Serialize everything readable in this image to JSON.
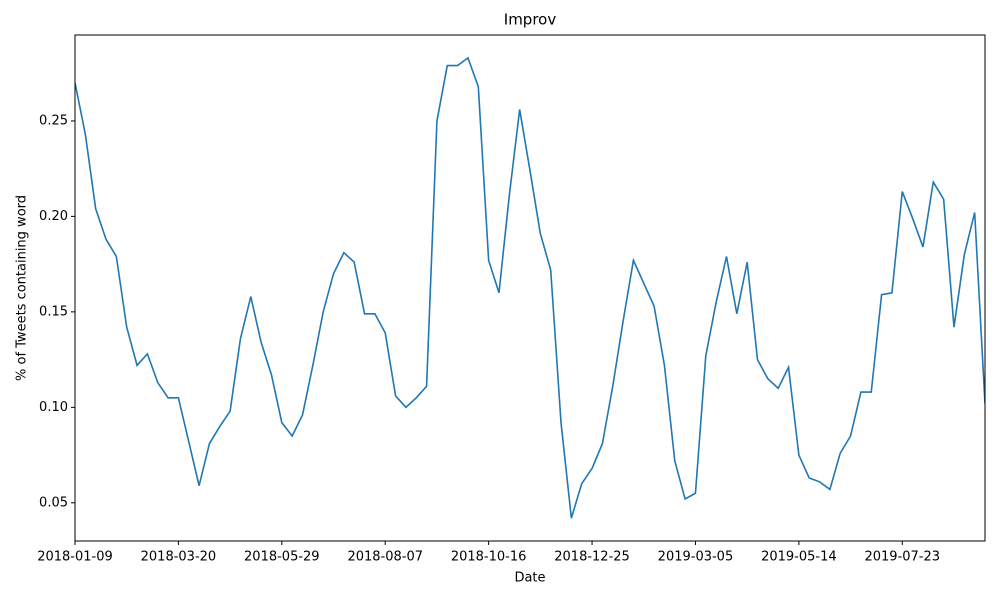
{
  "chart_data": {
    "type": "line",
    "title": "Improv",
    "x_label": "Date",
    "y_label": "% of Tweets containing word",
    "x": [
      "2018-01-09",
      "2018-01-16",
      "2018-01-23",
      "2018-01-30",
      "2018-02-06",
      "2018-02-13",
      "2018-02-20",
      "2018-02-27",
      "2018-03-06",
      "2018-03-13",
      "2018-03-20",
      "2018-03-27",
      "2018-04-03",
      "2018-04-10",
      "2018-04-17",
      "2018-04-24",
      "2018-05-01",
      "2018-05-08",
      "2018-05-15",
      "2018-05-22",
      "2018-05-29",
      "2018-06-05",
      "2018-06-12",
      "2018-06-19",
      "2018-06-26",
      "2018-07-03",
      "2018-07-10",
      "2018-07-17",
      "2018-07-24",
      "2018-07-31",
      "2018-08-07",
      "2018-08-14",
      "2018-08-21",
      "2018-08-28",
      "2018-09-04",
      "2018-09-11",
      "2018-09-18",
      "2018-09-25",
      "2018-10-02",
      "2018-10-09",
      "2018-10-16",
      "2018-10-23",
      "2018-10-30",
      "2018-11-06",
      "2018-11-13",
      "2018-11-20",
      "2018-11-27",
      "2018-12-04",
      "2018-12-11",
      "2018-12-18",
      "2018-12-25",
      "2019-01-01",
      "2019-01-08",
      "2019-01-15",
      "2019-01-22",
      "2019-01-29",
      "2019-02-05",
      "2019-02-12",
      "2019-02-19",
      "2019-02-26",
      "2019-03-05",
      "2019-03-12",
      "2019-03-19",
      "2019-03-26",
      "2019-04-02",
      "2019-04-09",
      "2019-04-16",
      "2019-04-23",
      "2019-04-30",
      "2019-05-07",
      "2019-05-14",
      "2019-05-21",
      "2019-05-28",
      "2019-06-04",
      "2019-06-11",
      "2019-06-18",
      "2019-06-25",
      "2019-07-02",
      "2019-07-09",
      "2019-07-16",
      "2019-07-23",
      "2019-07-30",
      "2019-08-06",
      "2019-08-13",
      "2019-08-20",
      "2019-08-27",
      "2019-09-03",
      "2019-09-10",
      "2019-09-17"
    ],
    "series": [
      {
        "name": "Improv",
        "color": "#1f77b4",
        "values": [
          0.27,
          0.243,
          0.204,
          0.188,
          0.179,
          0.142,
          0.122,
          0.128,
          0.113,
          0.105,
          0.105,
          0.082,
          0.059,
          0.081,
          0.09,
          0.098,
          0.136,
          0.158,
          0.134,
          0.117,
          0.092,
          0.085,
          0.096,
          0.122,
          0.15,
          0.17,
          0.181,
          0.176,
          0.149,
          0.149,
          0.139,
          0.106,
          0.1,
          0.105,
          0.111,
          0.25,
          0.279,
          0.279,
          0.283,
          0.268,
          0.177,
          0.16,
          0.211,
          0.256,
          0.224,
          0.191,
          0.172,
          0.092,
          0.042,
          0.06,
          0.068,
          0.081,
          0.111,
          0.145,
          0.177,
          0.165,
          0.153,
          0.122,
          0.072,
          0.052,
          0.055,
          0.127,
          0.155,
          0.179,
          0.149,
          0.176,
          0.125,
          0.115,
          0.11,
          0.121,
          0.075,
          0.063,
          0.061,
          0.057,
          0.076,
          0.085,
          0.108,
          0.108,
          0.159,
          0.16,
          0.213,
          0.199,
          0.184,
          0.218,
          0.209,
          0.142,
          0.18,
          0.202,
          0.102
        ]
      }
    ],
    "xlim": [
      "2018-01-09",
      "2019-09-17"
    ],
    "xticks": [
      "2018-01-09",
      "2018-03-20",
      "2018-05-29",
      "2018-08-07",
      "2018-10-16",
      "2018-12-25",
      "2019-03-05",
      "2019-05-14",
      "2019-07-23"
    ],
    "ylim": [
      0.03,
      0.295
    ],
    "yticks": [
      0.05,
      {
        "value": 0.1,
        "label": "0.10"
      },
      0.15,
      {
        "value": 0.2,
        "label": "0.20"
      },
      0.25
    ],
    "grid": false
  }
}
